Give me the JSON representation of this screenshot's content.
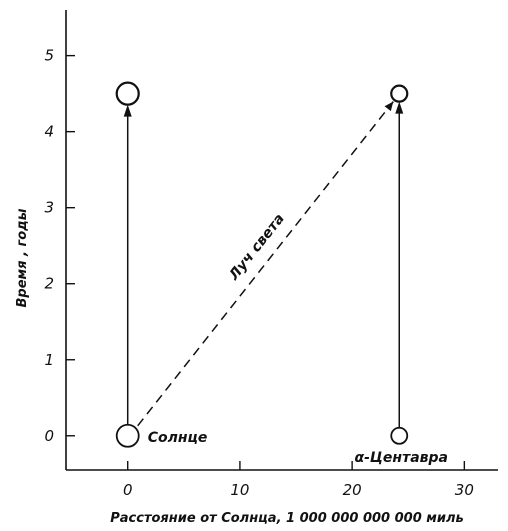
{
  "chart_data": {
    "type": "diagram",
    "xlabel": "Расстояние от Солнца, 1 000 000 000 000 миль",
    "ylabel": "Время , годы",
    "xlim": [
      -5.5,
      33
    ],
    "ylim": [
      -0.45,
      5.6
    ],
    "xticks": [
      0,
      10,
      20,
      30
    ],
    "yticks": [
      0,
      1,
      2,
      3,
      4,
      5
    ],
    "light_ray_label": "Луч света",
    "objects": [
      {
        "name": "Солнце",
        "x": 0,
        "y_start": 0,
        "y_end": 4.5
      },
      {
        "name": "α-Центавра",
        "x": 24.2,
        "y_start": 0,
        "y_end": 4.5
      }
    ],
    "light_ray": {
      "x1": 0,
      "y1": 0,
      "x2": 24.2,
      "y2": 4.5
    }
  },
  "colors": {
    "ink": "#111111",
    "background": "#ffffff"
  }
}
